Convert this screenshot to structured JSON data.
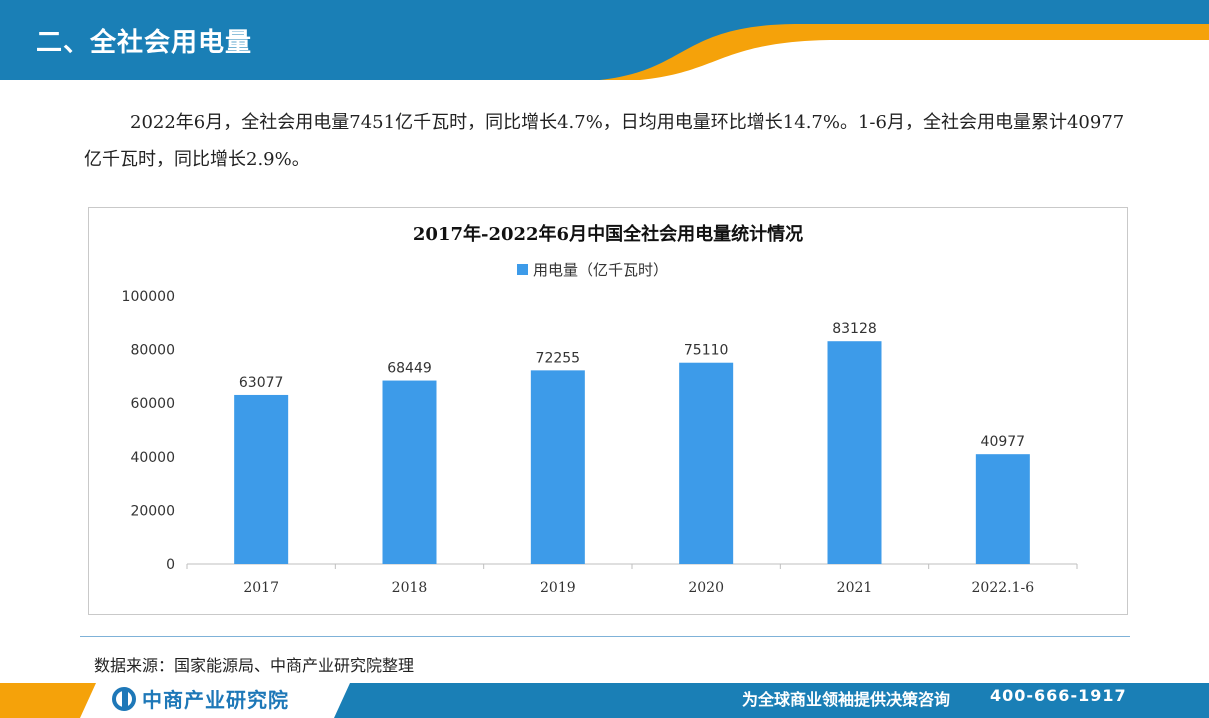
{
  "header": {
    "title": "二、全社会用电量"
  },
  "intro_text": "2022年6月，全社会用电量7451亿千瓦时，同比增长4.7%，日均用电量环比增长14.7%。1-6月，全社会用电量累计40977亿千瓦时，同比增长2.9%。",
  "colors": {
    "header_blue": "#1a7fb6",
    "accent_orange": "#f5a20a",
    "bar": "#3d9be9"
  },
  "chart_data": {
    "type": "bar",
    "title": "2017年-2022年6月中国全社会用电量统计情况",
    "categories": [
      "2017",
      "2018",
      "2019",
      "2020",
      "2021",
      "2022.1-6"
    ],
    "series": [
      {
        "name": "用电量（亿千瓦时）",
        "values": [
          63077,
          68449,
          72255,
          75110,
          83128,
          40977
        ]
      }
    ],
    "ylim": [
      0,
      100000
    ],
    "yticks": [
      0,
      20000,
      40000,
      60000,
      80000,
      100000
    ],
    "data_labels": true,
    "legend": "top-center",
    "grid": false
  },
  "source": "数据来源：国家能源局、中商产业研究院整理",
  "footer": {
    "logo_text": "中商产业研究院",
    "slogan": "为全球商业领袖提供决策咨询",
    "phone": "400-666-1917"
  }
}
